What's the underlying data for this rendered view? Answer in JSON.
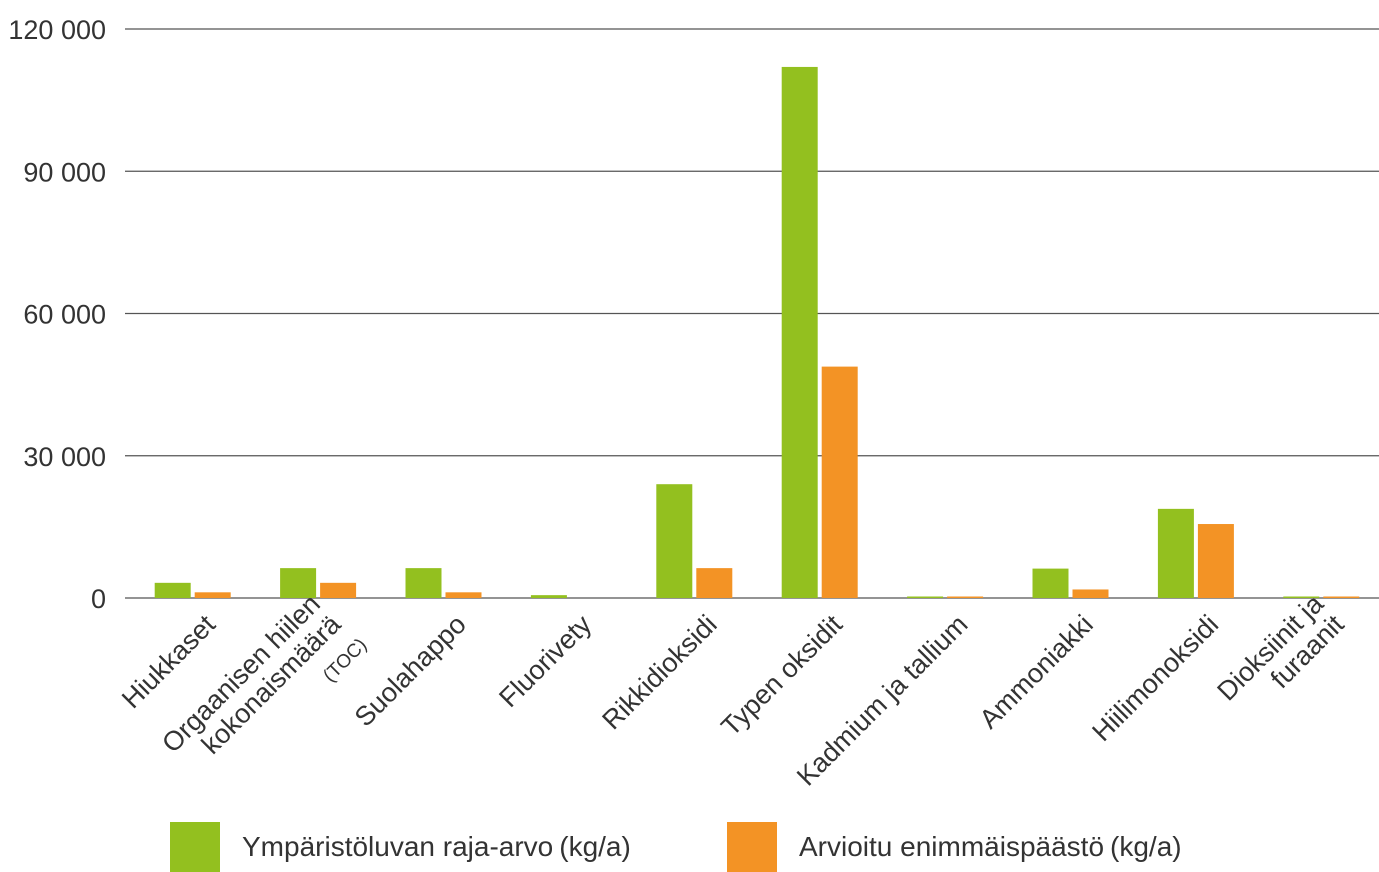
{
  "chart_data": {
    "type": "bar",
    "categories": [
      {
        "lines": [
          "Hiukkaset"
        ],
        "suffix": ""
      },
      {
        "lines": [
          "Orgaanisen hiilen",
          "kokonaismäärä"
        ],
        "suffix": "(TOC)"
      },
      {
        "lines": [
          "Suolahappo"
        ],
        "suffix": ""
      },
      {
        "lines": [
          "Fluorivety"
        ],
        "suffix": ""
      },
      {
        "lines": [
          "Rikkidioksidi"
        ],
        "suffix": ""
      },
      {
        "lines": [
          "Typen oksidit"
        ],
        "suffix": ""
      },
      {
        "lines": [
          "Kadmium ja tallium"
        ],
        "suffix": ""
      },
      {
        "lines": [
          "Ammoniakki"
        ],
        "suffix": ""
      },
      {
        "lines": [
          "Hiilimonoksidi"
        ],
        "suffix": ""
      },
      {
        "lines": [
          "Dioksiinit ja",
          "furaanit"
        ],
        "suffix": ""
      }
    ],
    "series": [
      {
        "name": "Ympäristöluvan raja-arvo",
        "unit": "(kg/a)",
        "color": "#93c01f",
        "values": [
          3200,
          6300,
          6300,
          600,
          24000,
          112000,
          200,
          6200,
          18800,
          200
        ]
      },
      {
        "name": "Arvioitu enimmäispäästö",
        "unit": "(kg/a)",
        "color": "#f39325",
        "values": [
          1200,
          3200,
          1200,
          0,
          6300,
          48800,
          30,
          1800,
          15600,
          30
        ]
      }
    ],
    "yticks": [
      {
        "value": 0,
        "label": "0"
      },
      {
        "value": 30000,
        "label": "30 000"
      },
      {
        "value": 60000,
        "label": "60 000"
      },
      {
        "value": 90000,
        "label": "90 000"
      },
      {
        "value": 120000,
        "label": "120 000"
      }
    ],
    "ylim": [
      0,
      120000
    ],
    "grid": true,
    "legend_position": "bottom"
  }
}
